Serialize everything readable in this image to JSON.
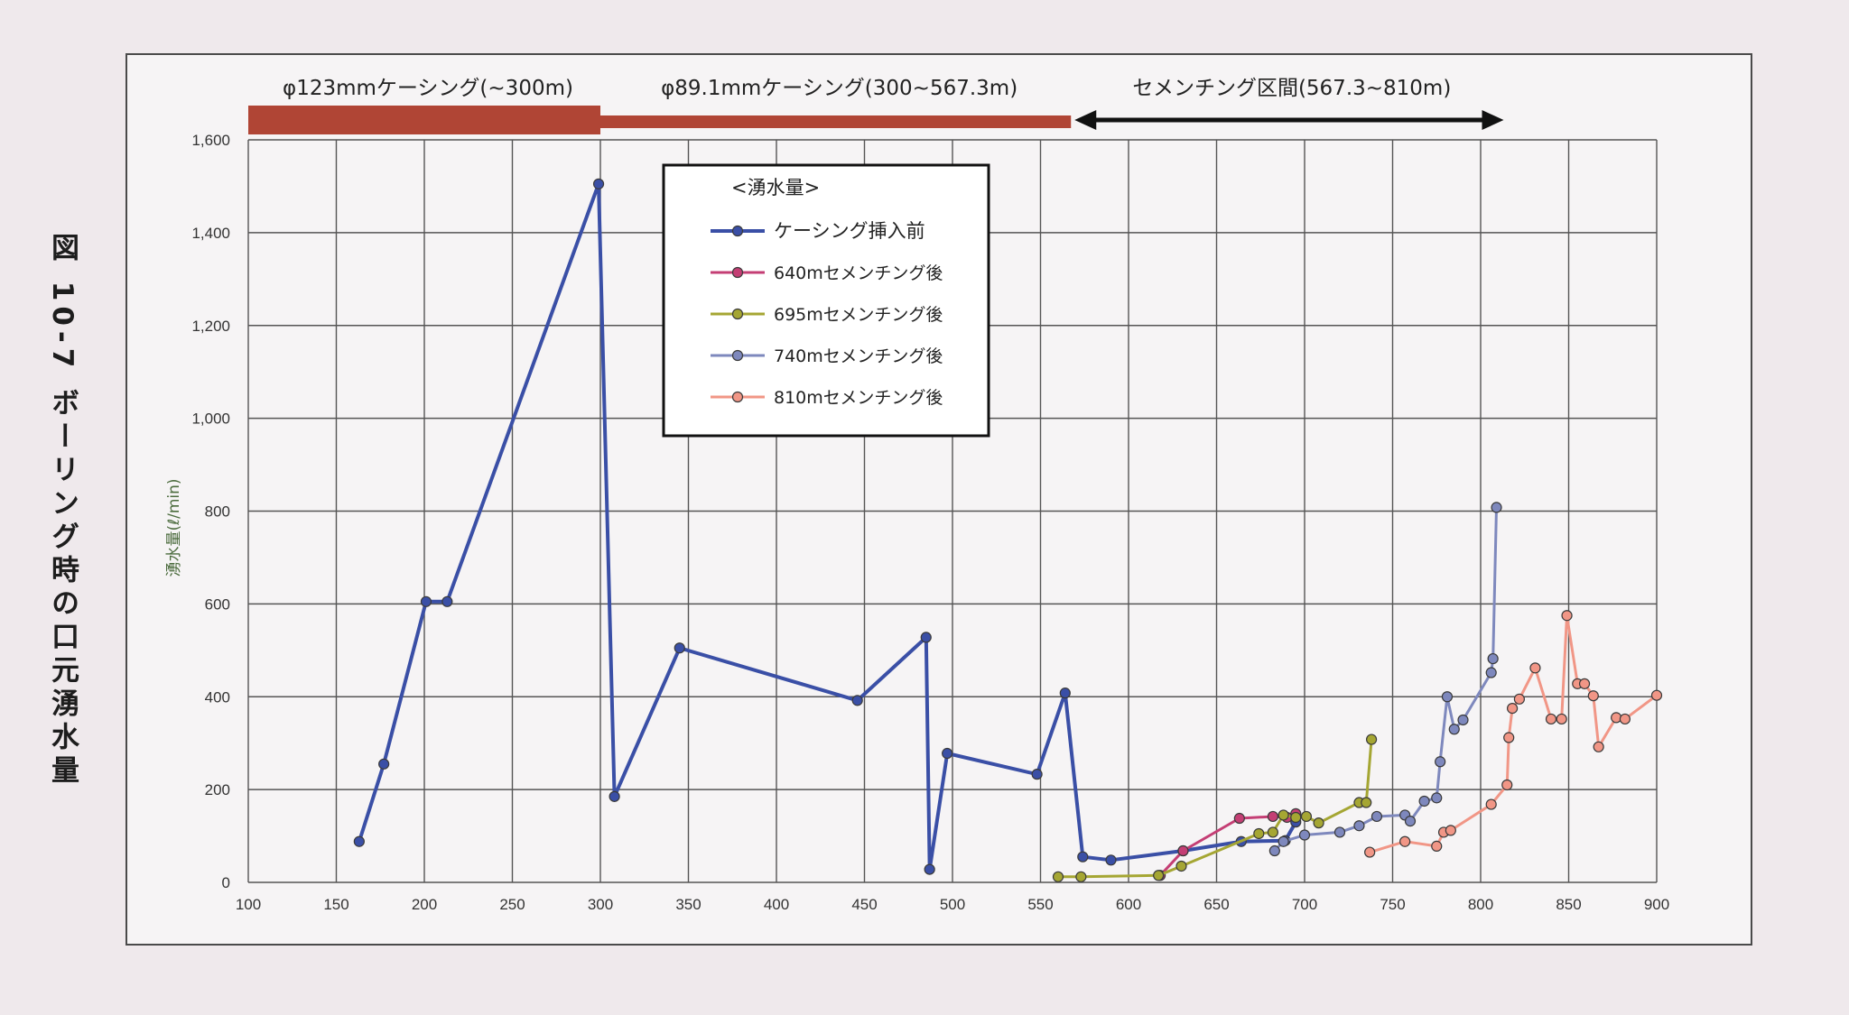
{
  "figure_caption": "図 10-7 ボーリング時の口元湧水量",
  "chart_data": {
    "type": "line",
    "title": "",
    "xlabel": "",
    "ylabel": "湧水量(ℓ/min)",
    "xlim": [
      100,
      900
    ],
    "ylim": [
      0,
      1600
    ],
    "x_ticks": [
      "100",
      "150",
      "200",
      "250",
      "300",
      "350",
      "400",
      "450",
      "500",
      "550",
      "600",
      "650",
      "700",
      "750",
      "800",
      "850",
      "900"
    ],
    "y_ticks": [
      "0",
      "200",
      "400",
      "600",
      "800",
      "1,000",
      "1,200",
      "1,400",
      "1,600"
    ],
    "grid": true,
    "legend": {
      "title": "<湧水量>",
      "placement": "top-center",
      "entries": [
        "ケーシング挿入前",
        "640mセメンチング後",
        "695mセメンチング後",
        "740mセメンチング後",
        "810mセメンチング後"
      ]
    },
    "annotations": {
      "casing_123": {
        "label": "φ123mmケーシング(~300m)",
        "from": 100,
        "to": 300,
        "color": "#b04535"
      },
      "casing_89": {
        "label": "φ89.1mmケーシング(300~567.3m)",
        "from": 300,
        "to": 567.3,
        "color": "#b04535"
      },
      "cementing": {
        "label": "セメンチング区間(567.3~810m)",
        "from": 567.3,
        "to": 810
      }
    },
    "series": [
      {
        "name": "ケーシング挿入前",
        "color": "#3a4fa6",
        "x": [
          163,
          177,
          201,
          213,
          299,
          308,
          345,
          446,
          485,
          487,
          497,
          548,
          564,
          574,
          590,
          631,
          664,
          689,
          695
        ],
        "y": [
          88,
          255,
          605,
          605,
          1505,
          185,
          505,
          392,
          528,
          28,
          278,
          233,
          408,
          55,
          48,
          68,
          88,
          90,
          130
        ]
      },
      {
        "name": "640mセメンチング後",
        "color": "#c43e74",
        "x": [
          618,
          631,
          663,
          682,
          690,
          695
        ],
        "y": [
          15,
          68,
          138,
          142,
          140,
          148
        ]
      },
      {
        "name": "695mセメンチング後",
        "color": "#a5a633",
        "x": [
          560,
          573,
          617,
          630,
          674,
          682,
          688,
          695,
          701,
          708,
          731,
          735,
          738
        ],
        "y": [
          12,
          12,
          15,
          35,
          105,
          108,
          145,
          140,
          142,
          128,
          172,
          172,
          308
        ]
      },
      {
        "name": "740mセメンチング後",
        "color": "#7e88bd",
        "x": [
          683,
          688,
          700,
          720,
          731,
          741,
          757,
          760,
          768,
          775,
          777,
          781,
          785,
          790,
          806,
          807,
          809
        ],
        "y": [
          68,
          88,
          102,
          108,
          122,
          142,
          145,
          132,
          175,
          182,
          260,
          400,
          330,
          350,
          452,
          482,
          808
        ]
      },
      {
        "name": "810mセメンチング後",
        "color": "#f19686",
        "x": [
          737,
          757,
          775,
          779,
          783,
          806,
          815,
          816,
          818,
          822,
          831,
          840,
          846,
          849,
          855,
          859,
          864,
          867,
          877,
          882,
          900
        ],
        "y": [
          65,
          88,
          78,
          108,
          112,
          168,
          210,
          312,
          375,
          395,
          462,
          352,
          352,
          575,
          428,
          428,
          402,
          292,
          355,
          352,
          403
        ]
      }
    ]
  }
}
